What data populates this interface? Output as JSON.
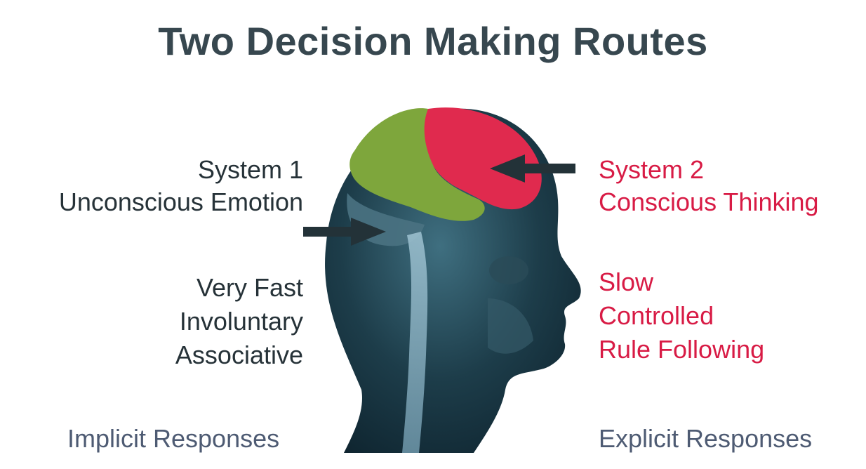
{
  "title": "Two Decision Making Routes",
  "system1": {
    "heading": "System 1",
    "subtitle": "Unconscious Emotion",
    "traits": [
      "Very Fast",
      "Involuntary",
      "Associative"
    ],
    "footer": "Implicit Responses"
  },
  "system2": {
    "heading": "System 2",
    "subtitle": "Conscious Thinking",
    "traits": [
      "Slow",
      "Controlled",
      "Rule Following"
    ],
    "footer": "Explicit Responses"
  },
  "colors": {
    "title": "#37474f",
    "system1_text": "#263238",
    "system2_text": "#d81b45",
    "footer_text": "#4e5b73",
    "limbic_region": "#7ea63c",
    "cortex_region": "#e02a4e",
    "head": "#16313d",
    "arrow": "#233238"
  }
}
